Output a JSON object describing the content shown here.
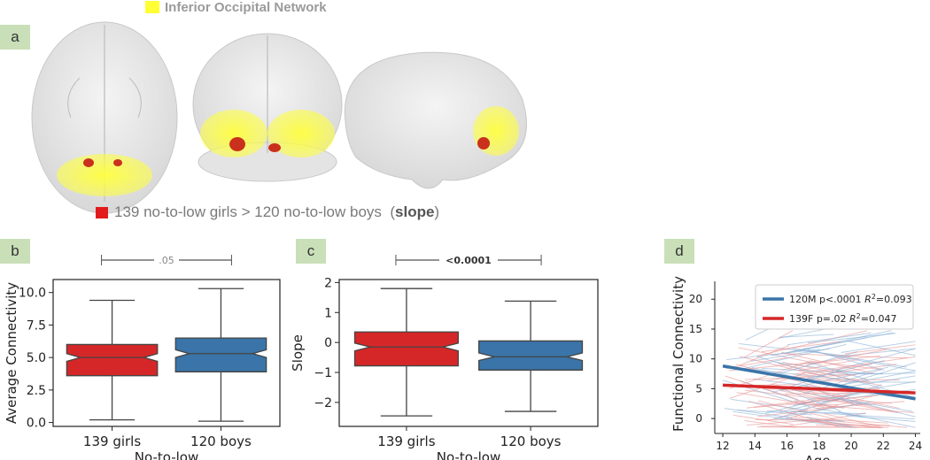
{
  "top_legend": {
    "label": "Inferior Occipital Network",
    "color": "#ffff33"
  },
  "panel_a": {
    "tag": "a",
    "caption_prefix": "139 no-to-low girls > 120 no-to-low boys  (",
    "caption_bold": "slope",
    "caption_suffix": ")",
    "caption_color": "#e31a1c"
  },
  "colors": {
    "girls": "#d62728",
    "boys": "#3a74a8",
    "tag_bg": "#c9dfb8"
  },
  "chart_data": [
    {
      "panel": "b",
      "type": "box",
      "categories": [
        "139 girls",
        "120 boys"
      ],
      "xlabel": "No-to-low",
      "ylabel": "Average Connectivity",
      "ylim": [
        -0.3,
        11.0
      ],
      "yticks": [
        "0.0",
        "2.5",
        "5.0",
        "7.5",
        "10.0"
      ],
      "significance": ".05",
      "boxes": [
        {
          "name": "139 girls",
          "min": 0.2,
          "q1": 3.6,
          "median": 5.0,
          "q3": 6.0,
          "max": 9.4,
          "notch": [
            4.7,
            5.3
          ]
        },
        {
          "name": "120 boys",
          "min": 0.1,
          "q1": 3.9,
          "median": 5.3,
          "q3": 6.5,
          "max": 10.3,
          "notch": [
            5.0,
            5.6
          ]
        }
      ]
    },
    {
      "panel": "c",
      "type": "box",
      "categories": [
        "139 girls",
        "120 boys"
      ],
      "xlabel": "No-to-low",
      "ylabel": "Slope",
      "ylim": [
        -2.8,
        2.1
      ],
      "yticks": [
        "−2",
        "−1",
        "0",
        "1",
        "2"
      ],
      "significance": "<0.0001",
      "boxes": [
        {
          "name": "139 girls",
          "min": -2.45,
          "q1": -0.78,
          "median": -0.15,
          "q3": 0.35,
          "max": 1.8,
          "notch": [
            -0.28,
            -0.02
          ]
        },
        {
          "name": "120 boys",
          "min": -2.3,
          "q1": -0.92,
          "median": -0.48,
          "q3": 0.05,
          "max": 1.38,
          "notch": [
            -0.6,
            -0.35
          ]
        }
      ]
    },
    {
      "panel": "d",
      "type": "line",
      "xlabel": "Age",
      "ylabel": "Functional Connectivity",
      "xlim": [
        11.5,
        24.3
      ],
      "ylim": [
        -2.5,
        23
      ],
      "xticks": [
        "12",
        "14",
        "16",
        "18",
        "20",
        "22",
        "24"
      ],
      "yticks": [
        "0",
        "5",
        "10",
        "15",
        "20"
      ],
      "series": [
        {
          "name": "120M p<.0001 R²=0.093",
          "legend_main": "120M p<.0001 ",
          "legend_r2": "=0.093",
          "x": [
            12,
            24
          ],
          "y": [
            8.8,
            3.3
          ]
        },
        {
          "name": "139F p=.02 R²=0.047",
          "legend_main": "139F p=.02 ",
          "legend_r2": "=0.047",
          "x": [
            12,
            24
          ],
          "y": [
            5.6,
            4.3
          ]
        }
      ]
    }
  ]
}
